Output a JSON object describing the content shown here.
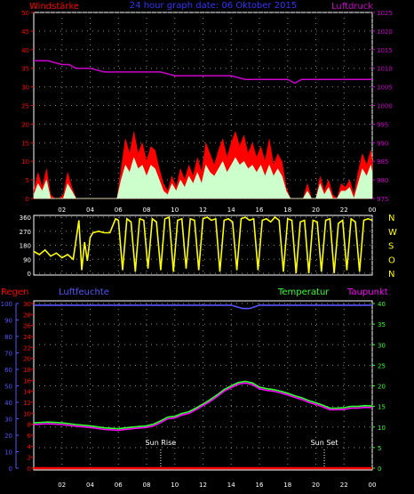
{
  "header": {
    "left_label": "Windstärke",
    "title": "24 hour graph date: 06 Oktober 2015",
    "right_label": "Luftdruck"
  },
  "colors": {
    "background": "#000000",
    "wind_axis": "#ff0000",
    "gust": "#ff0000",
    "wind": "#ccffcc",
    "pressure": "#cc00cc",
    "direction": "#ffff00",
    "rain": "#ff0000",
    "humidity": "#5555ff",
    "temperature": "#33ff33",
    "dewpoint": "#ff00ff",
    "sun": "#ffffff"
  },
  "chart_data": [
    {
      "type": "area",
      "x_ticks": [
        "02",
        "04",
        "06",
        "08",
        "10",
        "12",
        "14",
        "16",
        "18",
        "20",
        "22",
        "00"
      ],
      "y_left_ticks": [
        "0",
        "5",
        "10",
        "15",
        "20",
        "25",
        "30",
        "35",
        "40",
        "45",
        "50"
      ],
      "y_left_range": [
        0,
        50
      ],
      "y_right_ticks": [
        "975",
        "980",
        "985",
        "990",
        "995",
        "1000",
        "1005",
        "1010",
        "1015",
        "1020",
        "1025"
      ],
      "y_right_range": [
        975,
        1025
      ],
      "x_range_hours": [
        0,
        24
      ],
      "series": [
        {
          "type": "area",
          "color_key": "gust",
          "x": [
            0,
            0.3,
            0.6,
            0.9,
            1.2,
            1.5,
            1.8,
            2.1,
            2.4,
            2.7,
            3,
            3.5,
            4,
            4.5,
            5,
            5.3,
            5.6,
            5.9,
            6.2,
            6.5,
            6.8,
            7.1,
            7.4,
            7.7,
            8,
            8.3,
            8.6,
            8.9,
            9.2,
            9.5,
            9.8,
            10.1,
            10.4,
            10.7,
            11,
            11.3,
            11.6,
            11.9,
            12.2,
            12.5,
            12.8,
            13.1,
            13.4,
            13.7,
            14,
            14.3,
            14.6,
            14.9,
            15.2,
            15.5,
            15.8,
            16.1,
            16.4,
            16.7,
            17,
            17.3,
            17.6,
            17.9,
            18.2,
            18.5,
            18.8,
            19.1,
            19.4,
            19.7,
            20,
            20.3,
            20.6,
            20.9,
            21.2,
            21.5,
            21.8,
            22.1,
            22.4,
            22.7,
            23,
            23.3,
            23.6,
            23.9,
            24
          ],
          "values": [
            2,
            7,
            3,
            8,
            1,
            0,
            0,
            1,
            7,
            3,
            0,
            0,
            0,
            0,
            0,
            0,
            0,
            0,
            8,
            16,
            12,
            18,
            12,
            15,
            10,
            14,
            13,
            8,
            4,
            2,
            6,
            3,
            8,
            5,
            9,
            6,
            11,
            7,
            15,
            12,
            9,
            13,
            16,
            11,
            15,
            18,
            14,
            17,
            12,
            15,
            11,
            14,
            10,
            16,
            9,
            12,
            10,
            3,
            0,
            0,
            0,
            0,
            4,
            0,
            0,
            6,
            2,
            5,
            1,
            0,
            4,
            3,
            5,
            1,
            7,
            12,
            9,
            13,
            10
          ]
        },
        {
          "type": "area",
          "color_key": "wind",
          "x": [
            0,
            0.3,
            0.6,
            0.9,
            1.2,
            1.5,
            1.8,
            2.1,
            2.4,
            2.7,
            3,
            3.5,
            4,
            4.5,
            5,
            5.3,
            5.6,
            5.9,
            6.2,
            6.5,
            6.8,
            7.1,
            7.4,
            7.7,
            8,
            8.3,
            8.6,
            8.9,
            9.2,
            9.5,
            9.8,
            10.1,
            10.4,
            10.7,
            11,
            11.3,
            11.6,
            11.9,
            12.2,
            12.5,
            12.8,
            13.1,
            13.4,
            13.7,
            14,
            14.3,
            14.6,
            14.9,
            15.2,
            15.5,
            15.8,
            16.1,
            16.4,
            16.7,
            17,
            17.3,
            17.6,
            17.9,
            18.2,
            18.5,
            18.8,
            19.1,
            19.4,
            19.7,
            20,
            20.3,
            20.6,
            20.9,
            21.2,
            21.5,
            21.8,
            22.1,
            22.4,
            22.7,
            23,
            23.3,
            23.6,
            23.9,
            24
          ],
          "values": [
            1,
            4,
            2,
            5,
            0,
            0,
            0,
            0,
            4,
            2,
            0,
            0,
            0,
            0,
            0,
            0,
            0,
            0,
            5,
            9,
            7,
            11,
            8,
            9,
            6,
            9,
            8,
            5,
            2,
            1,
            4,
            2,
            5,
            3,
            6,
            4,
            7,
            4,
            9,
            7,
            6,
            8,
            10,
            7,
            9,
            11,
            9,
            10,
            8,
            9,
            7,
            9,
            6,
            9,
            6,
            8,
            6,
            2,
            0,
            0,
            0,
            0,
            2,
            0,
            0,
            4,
            1,
            3,
            0,
            0,
            2,
            2,
            3,
            0,
            4,
            8,
            6,
            9,
            7
          ]
        },
        {
          "type": "line",
          "color_key": "pressure",
          "axis": "right",
          "x": [
            0,
            1,
            2,
            2.5,
            3,
            4,
            5,
            6,
            7,
            8,
            9,
            10,
            11,
            12,
            13,
            14,
            15,
            15.5,
            16,
            17,
            18,
            18.5,
            19,
            20,
            21,
            22,
            23,
            24
          ],
          "values": [
            1012,
            1012,
            1011,
            1011,
            1010,
            1010,
            1009,
            1009,
            1009,
            1009,
            1009,
            1008,
            1008,
            1008,
            1008,
            1008,
            1007,
            1007,
            1007,
            1007,
            1007,
            1006,
            1007,
            1007,
            1007,
            1007,
            1007,
            1007
          ]
        }
      ]
    },
    {
      "type": "scatter",
      "y_left_ticks": [
        "0",
        "90",
        "180",
        "270",
        "360"
      ],
      "y_right_labels": [
        "N",
        "W",
        "S",
        "O",
        "N"
      ],
      "y_range": [
        0,
        360
      ],
      "x_range_hours": [
        0,
        24
      ],
      "series": [
        {
          "type": "line",
          "color_key": "direction",
          "x": [
            0,
            0.4,
            0.8,
            1.2,
            1.6,
            2,
            2.4,
            2.8,
            3.2,
            3.4,
            3.6,
            3.8,
            4,
            4.2,
            4.6,
            5,
            5.4,
            5.8,
            6,
            6.3,
            6.6,
            6.9,
            7.2,
            7.5,
            7.8,
            8.1,
            8.4,
            8.7,
            9,
            9.3,
            9.6,
            9.9,
            10.2,
            10.5,
            10.8,
            11.1,
            11.4,
            11.7,
            12,
            12.3,
            12.6,
            12.9,
            13.2,
            13.5,
            13.8,
            14.1,
            14.4,
            14.7,
            15,
            15.3,
            15.6,
            15.9,
            16.2,
            16.5,
            16.8,
            17.1,
            17.4,
            17.7,
            18,
            18.3,
            18.6,
            18.9,
            19.2,
            19.5,
            19.8,
            20.1,
            20.4,
            20.7,
            21,
            21.3,
            21.6,
            21.9,
            22.2,
            22.5,
            22.8,
            23.1,
            23.4,
            23.7,
            24
          ],
          "values": [
            140,
            120,
            150,
            110,
            130,
            100,
            120,
            90,
            340,
            20,
            200,
            80,
            230,
            260,
            270,
            260,
            260,
            350,
            340,
            20,
            350,
            330,
            10,
            350,
            340,
            30,
            350,
            330,
            20,
            350,
            360,
            10,
            340,
            350,
            30,
            350,
            340,
            20,
            350,
            360,
            340,
            350,
            10,
            340,
            350,
            330,
            20,
            350,
            360,
            340,
            350,
            20,
            340,
            350,
            330,
            360,
            340,
            10,
            350,
            340,
            0,
            330,
            340,
            0,
            340,
            330,
            10,
            340,
            350,
            0,
            320,
            340,
            20,
            350,
            330,
            10,
            340,
            350,
            340
          ]
        }
      ]
    },
    {
      "type": "line",
      "top_labels": {
        "rain": "Regen",
        "humidity": "Luftfeuchte",
        "temperature": "Temperatur",
        "dewpoint": "Taupunkt"
      },
      "x_ticks": [
        "02",
        "04",
        "06",
        "08",
        "10",
        "12",
        "14",
        "16",
        "18",
        "20",
        "22",
        "00"
      ],
      "y_humidity_ticks": [
        "0",
        "10",
        "20",
        "30",
        "40",
        "50",
        "60",
        "70",
        "80",
        "90",
        "100"
      ],
      "y_humidity_range": [
        0,
        100
      ],
      "y_rain_ticks": [
        "0",
        "2",
        "4",
        "6",
        "8",
        "10",
        "12",
        "14",
        "16",
        "18",
        "20",
        "22",
        "24",
        "26",
        "28",
        "30"
      ],
      "y_rain_range": [
        0,
        30
      ],
      "y_temp_ticks": [
        "0",
        "5",
        "10",
        "15",
        "20",
        "25",
        "30",
        "35",
        "40"
      ],
      "y_temp_range": [
        0,
        40
      ],
      "x_range_hours": [
        0,
        24
      ],
      "annotations": [
        {
          "label": "Sun Rise",
          "x": 9.0
        },
        {
          "label": "Sun Set",
          "x": 20.6
        }
      ],
      "series": [
        {
          "type": "line",
          "color_key": "humidity",
          "axis": "humidity",
          "x": [
            0,
            3,
            6,
            9,
            12,
            14,
            14.8,
            15.3,
            16,
            18,
            21,
            24
          ],
          "values": [
            99,
            99,
            99,
            99,
            99,
            99,
            97,
            97,
            99,
            99,
            99,
            99
          ]
        },
        {
          "type": "line",
          "color_key": "rain",
          "axis": "rain",
          "x": [
            0,
            24
          ],
          "values": [
            0,
            0
          ]
        },
        {
          "type": "line",
          "color_key": "temperature",
          "axis": "temp",
          "x": [
            0,
            1,
            2,
            3,
            4,
            5,
            6,
            7,
            8,
            8.5,
            9,
            9.5,
            10,
            10.5,
            11,
            11.5,
            12,
            12.5,
            13,
            13.5,
            14,
            14.5,
            15,
            15.5,
            16,
            16.5,
            17,
            17.5,
            18,
            18.5,
            19,
            19.5,
            20,
            20.5,
            21,
            21.5,
            22,
            22.5,
            23,
            23.5,
            24
          ],
          "values": [
            11.0,
            11.2,
            11.0,
            10.6,
            10.3,
            9.8,
            9.6,
            10.0,
            10.3,
            10.7,
            11.5,
            12.4,
            12.6,
            13.3,
            13.7,
            14.6,
            15.6,
            16.6,
            17.8,
            19.1,
            20.0,
            20.8,
            21.1,
            20.7,
            19.7,
            19.3,
            19.1,
            18.7,
            18.2,
            17.6,
            17.1,
            16.4,
            15.9,
            15.3,
            14.6,
            14.6,
            14.7,
            15.0,
            15.0,
            15.2,
            15.1
          ]
        },
        {
          "type": "line",
          "color_key": "dewpoint",
          "axis": "temp",
          "x": [
            0,
            1,
            2,
            3,
            4,
            5,
            6,
            7,
            8,
            8.5,
            9,
            9.5,
            10,
            10.5,
            11,
            11.5,
            12,
            12.5,
            13,
            13.5,
            14,
            14.5,
            15,
            15.5,
            16,
            16.5,
            17,
            17.5,
            18,
            18.5,
            19,
            19.5,
            20,
            20.5,
            21,
            21.5,
            22,
            22.5,
            23,
            23.5,
            24
          ],
          "values": [
            10.6,
            10.8,
            10.6,
            10.2,
            9.9,
            9.4,
            9.2,
            9.6,
            9.9,
            10.3,
            11.1,
            12.0,
            12.2,
            12.9,
            13.3,
            14.2,
            15.2,
            16.2,
            17.4,
            18.7,
            19.6,
            20.4,
            20.7,
            20.3,
            19.3,
            18.9,
            18.7,
            18.3,
            17.8,
            17.2,
            16.7,
            16.0,
            15.5,
            14.9,
            14.2,
            14.2,
            14.3,
            14.6,
            14.6,
            14.8,
            14.7
          ]
        }
      ]
    }
  ]
}
